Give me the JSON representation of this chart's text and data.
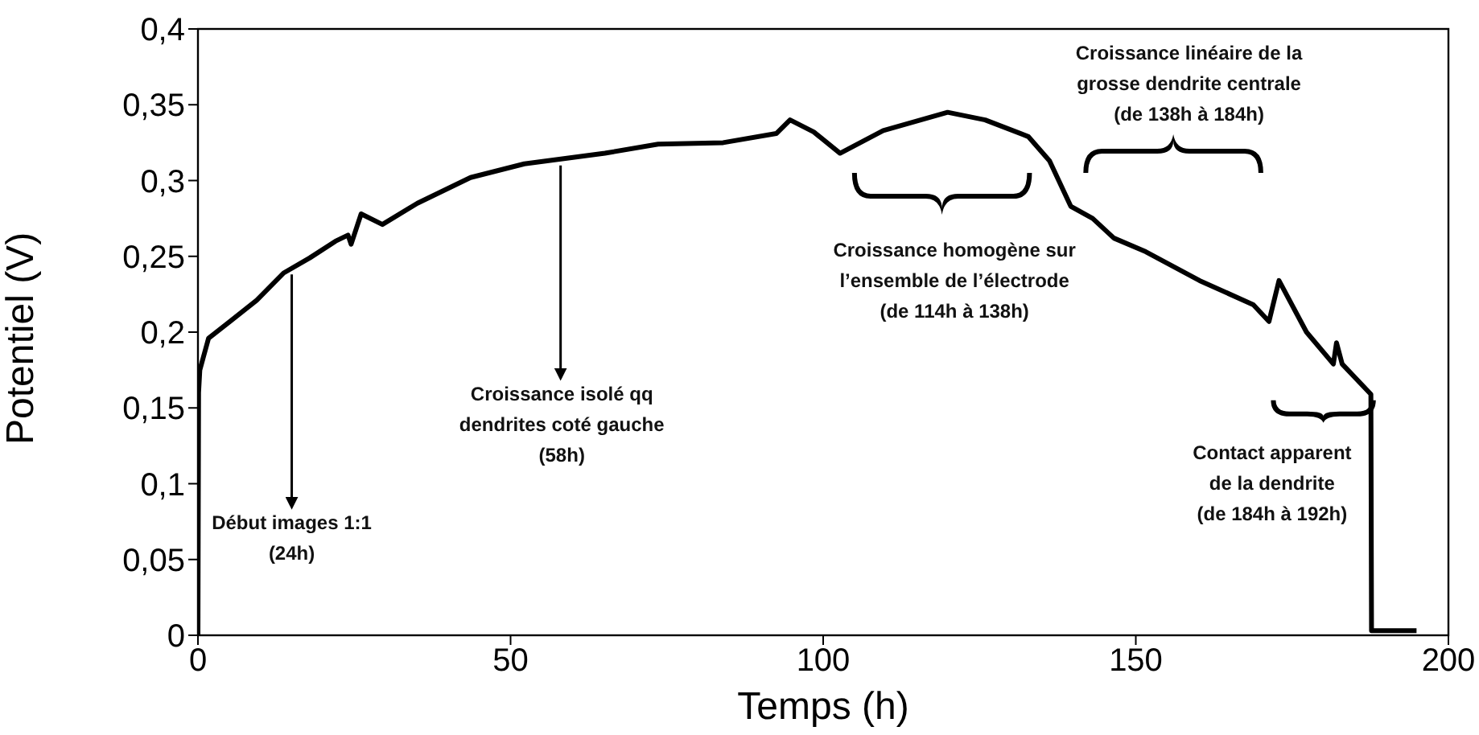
{
  "chart_data": {
    "type": "line",
    "xlabel": "Temps (h)",
    "ylabel": "Potentiel (V)",
    "x": [
      0,
      0.1,
      0.3,
      1.7,
      5.1,
      9.4,
      13.7,
      17.9,
      22,
      24,
      24.5,
      26.1,
      29.5,
      35.1,
      43.6,
      52.2,
      65.1,
      73.6,
      84,
      92.5,
      94.7,
      98.5,
      102.7,
      109.6,
      119.9,
      125.9,
      132.8,
      136.2,
      139.6,
      143.1,
      146.5,
      151.6,
      160.2,
      168.8,
      171.3,
      172.9,
      177.3,
      181.6,
      182.1,
      183,
      187.6,
      187.7,
      194.9
    ],
    "series": [
      {
        "color": "#000000",
        "values": [
          0,
          0.16,
          0.175,
          0.196,
          0.207,
          0.221,
          0.239,
          0.249,
          0.26,
          0.264,
          0.258,
          0.278,
          0.271,
          0.285,
          0.302,
          0.311,
          0.318,
          0.324,
          0.325,
          0.331,
          0.34,
          0.332,
          0.318,
          0.333,
          0.345,
          0.34,
          0.329,
          0.313,
          0.283,
          0.275,
          0.262,
          0.253,
          0.234,
          0.218,
          0.207,
          0.234,
          0.2,
          0.179,
          0.193,
          0.179,
          0.159,
          0.003,
          0.003
        ]
      }
    ],
    "xlim": [
      0,
      200
    ],
    "xticks": [
      0,
      50,
      100,
      150,
      200
    ],
    "ylim": [
      0,
      0.4
    ],
    "yticks": [
      0,
      {
        "value": 0.05,
        "label": "0,05"
      },
      {
        "value": 0.1,
        "label": "0,1"
      },
      {
        "value": 0.15,
        "label": "0,15"
      },
      {
        "value": 0.2,
        "label": "0,2"
      },
      {
        "value": 0.25,
        "label": "0,25"
      },
      {
        "value": 0.3,
        "label": "0,3"
      },
      {
        "value": 0.35,
        "label": "0,35"
      },
      {
        "value": 0.4,
        "label": "0,4"
      }
    ],
    "grid": false,
    "legend": false,
    "marker": "none",
    "line_style": "solid",
    "annotations": [
      {
        "text": "Début images 1:1\n(24h)",
        "x": 15,
        "y": 0.242
      },
      {
        "text": "Croissance isolé qq\ndendrites coté gauche\n(58h)",
        "x": 58,
        "y": 0.314
      },
      "Croissance homogène sur\nl’ensemble de l’électrode\n(de 114h à 138h)",
      "Croissance linéaire de la\ngrosse dendrite centrale\n(de 138h à 184h)",
      {
        "text": "Contact apparent\nde la dendrite\n(de 184h à 192h)",
        "x": 187.6,
        "y": 0.159
      }
    ]
  }
}
